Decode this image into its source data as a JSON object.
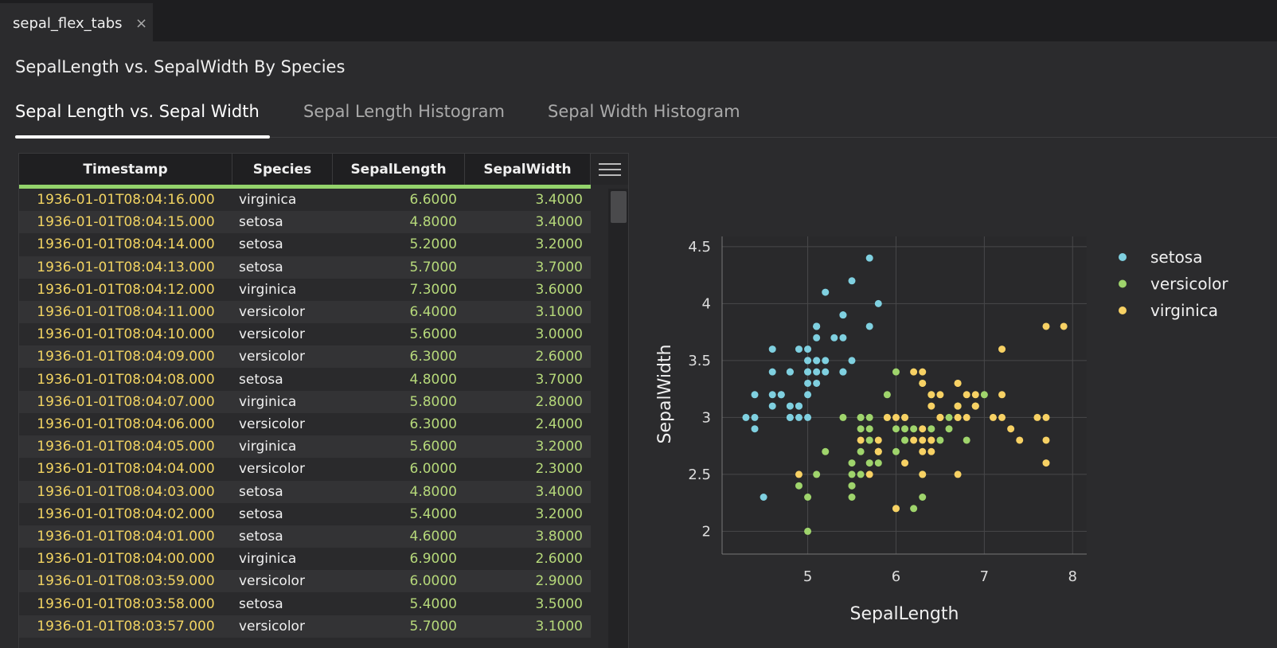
{
  "tab": {
    "label": "sepal_flex_tabs"
  },
  "title": "SepalLength vs. SepalWidth By Species",
  "tabs": [
    "Sepal Length vs. Sepal Width",
    "Sepal Length Histogram",
    "Sepal Width Histogram"
  ],
  "table": {
    "columns": [
      "Timestamp",
      "Species",
      "SepalLength",
      "SepalWidth"
    ],
    "rows": [
      [
        "1936-01-01T08:04:16.000",
        "virginica",
        "6.6000",
        "3.4000"
      ],
      [
        "1936-01-01T08:04:15.000",
        "setosa",
        "4.8000",
        "3.4000"
      ],
      [
        "1936-01-01T08:04:14.000",
        "setosa",
        "5.2000",
        "3.2000"
      ],
      [
        "1936-01-01T08:04:13.000",
        "setosa",
        "5.7000",
        "3.7000"
      ],
      [
        "1936-01-01T08:04:12.000",
        "virginica",
        "7.3000",
        "3.6000"
      ],
      [
        "1936-01-01T08:04:11.000",
        "versicolor",
        "6.4000",
        "3.1000"
      ],
      [
        "1936-01-01T08:04:10.000",
        "versicolor",
        "5.6000",
        "3.0000"
      ],
      [
        "1936-01-01T08:04:09.000",
        "versicolor",
        "6.3000",
        "2.6000"
      ],
      [
        "1936-01-01T08:04:08.000",
        "setosa",
        "4.8000",
        "3.7000"
      ],
      [
        "1936-01-01T08:04:07.000",
        "virginica",
        "5.8000",
        "2.8000"
      ],
      [
        "1936-01-01T08:04:06.000",
        "versicolor",
        "6.3000",
        "2.4000"
      ],
      [
        "1936-01-01T08:04:05.000",
        "virginica",
        "5.6000",
        "3.2000"
      ],
      [
        "1936-01-01T08:04:04.000",
        "versicolor",
        "6.0000",
        "2.3000"
      ],
      [
        "1936-01-01T08:04:03.000",
        "setosa",
        "4.8000",
        "3.4000"
      ],
      [
        "1936-01-01T08:04:02.000",
        "setosa",
        "5.4000",
        "3.2000"
      ],
      [
        "1936-01-01T08:04:01.000",
        "setosa",
        "4.6000",
        "3.8000"
      ],
      [
        "1936-01-01T08:04:00.000",
        "virginica",
        "6.9000",
        "2.6000"
      ],
      [
        "1936-01-01T08:03:59.000",
        "versicolor",
        "6.0000",
        "2.9000"
      ],
      [
        "1936-01-01T08:03:58.000",
        "setosa",
        "5.4000",
        "3.5000"
      ],
      [
        "1936-01-01T08:03:57.000",
        "versicolor",
        "5.7000",
        "3.1000"
      ]
    ]
  },
  "chart_data": {
    "type": "scatter",
    "x_label": "SepalLength",
    "y_label": "SepalWidth",
    "xlim": [
      4.03,
      8.16
    ],
    "ylim": [
      1.8,
      4.59
    ],
    "xticks": [
      5,
      6,
      7,
      8
    ],
    "yticks": [
      2,
      2.5,
      3,
      3.5,
      4,
      4.5
    ],
    "grid": true,
    "series": [
      {
        "name": "setosa",
        "color": "#7fd0e0",
        "x": [
          5.1,
          4.9,
          4.7,
          4.6,
          5.0,
          5.4,
          4.6,
          5.0,
          4.4,
          4.9,
          5.4,
          4.8,
          4.8,
          4.3,
          5.8,
          5.7,
          5.4,
          5.1,
          5.7,
          5.1,
          5.4,
          5.1,
          4.6,
          5.1,
          4.8,
          5.0,
          5.0,
          5.2,
          5.2,
          4.7,
          4.8,
          5.4,
          5.2,
          5.5,
          4.9,
          5.0,
          5.5,
          4.9,
          4.4,
          5.1,
          5.0,
          4.5,
          4.4,
          5.0,
          5.1,
          4.8,
          5.1,
          4.6,
          5.3,
          5.0
        ],
        "values": [
          3.5,
          3.0,
          3.2,
          3.1,
          3.6,
          3.9,
          3.4,
          3.4,
          2.9,
          3.1,
          3.7,
          3.4,
          3.0,
          3.0,
          4.0,
          4.4,
          3.9,
          3.5,
          3.8,
          3.8,
          3.4,
          3.7,
          3.6,
          3.3,
          3.4,
          3.0,
          3.4,
          3.5,
          3.4,
          3.2,
          3.1,
          3.4,
          4.1,
          4.2,
          3.1,
          3.2,
          3.5,
          3.6,
          3.0,
          3.4,
          3.5,
          2.3,
          3.2,
          3.5,
          3.8,
          3.0,
          3.8,
          3.2,
          3.7,
          3.3
        ]
      },
      {
        "name": "versicolor",
        "color": "#9fd46c",
        "x": [
          7.0,
          6.4,
          6.9,
          5.5,
          6.5,
          5.7,
          6.3,
          4.9,
          6.6,
          5.2,
          5.0,
          5.9,
          6.0,
          6.1,
          5.6,
          6.7,
          5.6,
          5.8,
          6.2,
          5.6,
          5.9,
          6.1,
          6.3,
          6.1,
          6.4,
          6.6,
          6.8,
          6.7,
          6.0,
          5.7,
          5.5,
          5.5,
          5.8,
          6.0,
          5.4,
          6.0,
          6.7,
          6.3,
          5.6,
          5.5,
          5.5,
          6.1,
          5.8,
          5.0,
          5.6,
          5.7,
          5.7,
          6.2,
          5.1,
          5.7
        ],
        "values": [
          3.2,
          3.2,
          3.1,
          2.3,
          2.8,
          2.8,
          3.3,
          2.4,
          2.9,
          2.7,
          2.0,
          3.0,
          2.2,
          2.9,
          2.9,
          3.1,
          3.0,
          2.7,
          2.2,
          2.5,
          3.2,
          2.8,
          2.5,
          2.8,
          2.9,
          3.0,
          2.8,
          3.0,
          2.9,
          2.6,
          2.4,
          2.4,
          2.7,
          2.7,
          3.0,
          3.4,
          3.1,
          2.3,
          3.0,
          2.5,
          2.6,
          3.0,
          2.6,
          2.3,
          2.7,
          3.0,
          2.9,
          2.9,
          2.5,
          2.8
        ]
      },
      {
        "name": "virginica",
        "color": "#f7d164",
        "x": [
          6.3,
          5.8,
          7.1,
          6.3,
          6.5,
          7.6,
          4.9,
          7.3,
          6.7,
          7.2,
          6.5,
          6.4,
          6.8,
          5.7,
          5.8,
          6.4,
          6.5,
          7.7,
          7.7,
          6.0,
          6.9,
          5.6,
          7.7,
          6.3,
          6.7,
          7.2,
          6.2,
          6.1,
          6.4,
          7.2,
          7.4,
          7.9,
          6.4,
          6.3,
          6.1,
          7.7,
          6.3,
          6.4,
          6.0,
          6.9,
          6.7,
          6.9,
          5.8,
          6.8,
          6.7,
          6.7,
          6.3,
          6.5,
          6.2,
          5.9
        ],
        "values": [
          3.3,
          2.7,
          3.0,
          2.9,
          3.0,
          3.0,
          2.5,
          2.9,
          2.5,
          3.6,
          3.2,
          2.7,
          3.0,
          2.5,
          2.8,
          3.2,
          3.0,
          3.8,
          2.6,
          2.2,
          3.2,
          2.8,
          2.8,
          2.7,
          3.3,
          3.2,
          2.8,
          3.0,
          2.8,
          3.0,
          2.8,
          3.8,
          2.8,
          2.8,
          2.6,
          3.0,
          3.4,
          3.1,
          3.0,
          3.1,
          3.1,
          3.1,
          2.7,
          3.2,
          3.3,
          3.0,
          2.5,
          3.0,
          3.4,
          3.0
        ]
      }
    ]
  }
}
